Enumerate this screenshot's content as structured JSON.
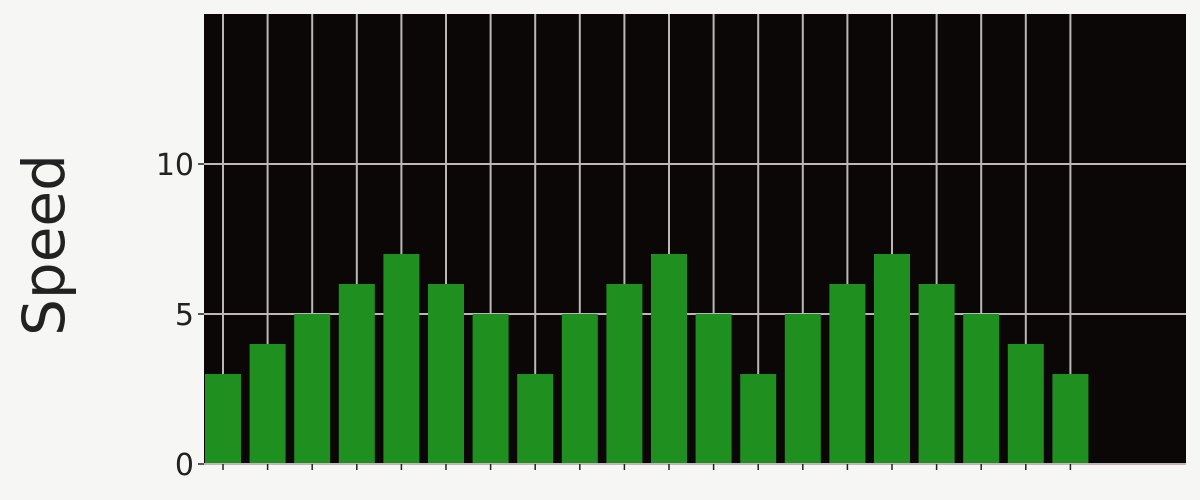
{
  "chart_data": {
    "type": "bar",
    "title": "",
    "xlabel": "",
    "ylabel": "Speed",
    "categories": [
      "",
      "",
      "",
      "",
      "",
      "",
      "",
      "",
      "",
      "",
      "",
      "",
      "",
      "",
      "",
      "",
      "",
      "",
      "",
      ""
    ],
    "series": [
      {
        "values": [
          3,
          4,
          5,
          6,
          7,
          6,
          5,
          3,
          5,
          6,
          7,
          5,
          3,
          5,
          6,
          7,
          6,
          5,
          4,
          3
        ]
      }
    ],
    "ylim": [
      0,
      15
    ],
    "yticks": [
      0,
      5,
      10
    ],
    "ytick_labels": [
      "0",
      "5",
      "10"
    ],
    "grid": true,
    "legend": "none",
    "colors": {
      "plot_background": "#0b0707",
      "bar": "#1f8f1f",
      "grid": "#bdb7b7",
      "text": "#222222",
      "page_background": "#f6f6f4"
    }
  }
}
